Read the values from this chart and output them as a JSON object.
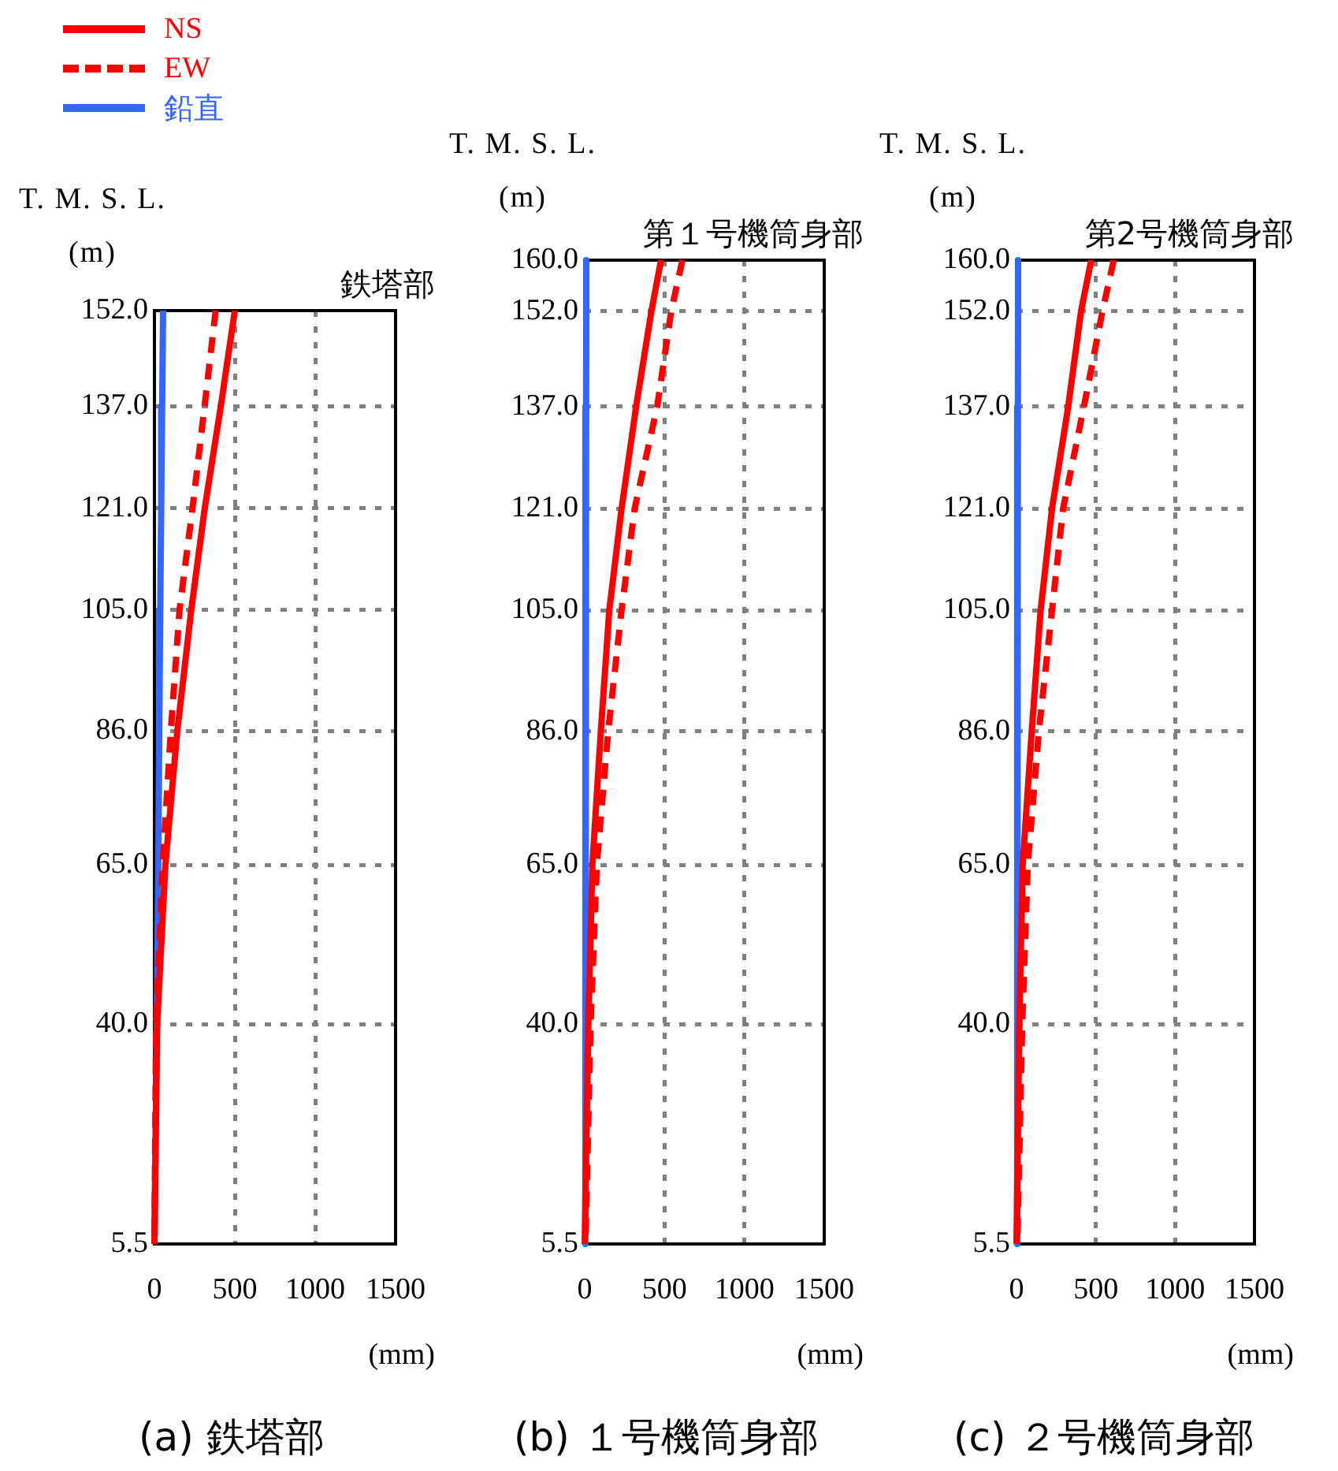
{
  "chart_data": [
    {
      "type": "line",
      "title": "鉄塔部",
      "xlabel": "(mm)",
      "ylabel": "T. M. S. L.\n(m)",
      "annotations": [
        "(a) 鉄塔部"
      ],
      "legend": "top left",
      "grid": true,
      "xlim": [
        0,
        1500
      ],
      "xticks": [
        0,
        500,
        1000,
        1500
      ],
      "ylim": [
        5.5,
        152
      ],
      "yticks": [
        {
          "value": 5.5,
          "label": "5.5"
        },
        {
          "value": 40,
          "label": "40.0"
        },
        {
          "value": 65,
          "label": "65.0"
        },
        {
          "value": 86,
          "label": "86.0"
        },
        {
          "value": 105,
          "label": "105.0"
        },
        {
          "value": 121,
          "label": "121.0"
        },
        {
          "value": 137,
          "label": "137.0"
        },
        {
          "value": 152,
          "label": "152.0"
        }
      ],
      "series": [
        {
          "name": "NS",
          "color": "#ff0000",
          "line_style": "solid",
          "x": [
            500,
            413,
            313,
            229,
            142,
            68,
            17,
            0
          ],
          "values": [
            152,
            137,
            121,
            105,
            86,
            65,
            40,
            5.5
          ]
        },
        {
          "name": "EW",
          "color": "#ff0000",
          "line_style": "dashed",
          "x": [
            381,
            312,
            237,
            156,
            102,
            51,
            10,
            0
          ],
          "values": [
            152,
            137,
            121,
            105,
            86,
            65,
            40,
            5.5
          ]
        },
        {
          "name": "鉛直",
          "color": "#3366ff",
          "line_style": "solid",
          "x": [
            54,
            48,
            42,
            36,
            30,
            24,
            15,
            0
          ],
          "values": [
            152,
            137,
            121,
            105,
            86,
            65,
            40,
            5.5
          ]
        }
      ]
    },
    {
      "type": "line",
      "title": "第１号機筒身部",
      "xlabel": "(mm)",
      "ylabel": "T. M. S. L.\n(m)",
      "annotations": [
        "(b) １号機筒身部"
      ],
      "grid": true,
      "xlim": [
        0,
        1500
      ],
      "xticks": [
        0,
        500,
        1000,
        1500
      ],
      "ylim": [
        5.5,
        160
      ],
      "yticks": [
        {
          "value": 5.5,
          "label": "5.5"
        },
        {
          "value": 40,
          "label": "40.0"
        },
        {
          "value": 65,
          "label": "65.0"
        },
        {
          "value": 86,
          "label": "86.0"
        },
        {
          "value": 105,
          "label": "105.0"
        },
        {
          "value": 121,
          "label": "121.0"
        },
        {
          "value": 137,
          "label": "137.0"
        },
        {
          "value": 152,
          "label": "152.0"
        },
        {
          "value": 160,
          "label": "160.0"
        }
      ],
      "series": [
        {
          "color": "#ff0000",
          "line_style": "solid",
          "x": [
            478,
            418,
            322,
            231,
            154,
            101,
            48,
            23,
            0
          ],
          "values": [
            160,
            152,
            137,
            121,
            105,
            86,
            65,
            40,
            5.5
          ]
        },
        {
          "color": "#ff0000",
          "line_style": "dashed",
          "x": [
            612,
            542,
            454,
            313,
            231,
            147,
            76,
            37,
            5
          ],
          "values": [
            160,
            152,
            137,
            121,
            105,
            86,
            65,
            40,
            5.5
          ]
        },
        {
          "color": "#3366ff",
          "line_style": "solid",
          "x": [
            10,
            10,
            9,
            8,
            7,
            6,
            4,
            2,
            0
          ],
          "values": [
            160,
            152,
            137,
            121,
            105,
            86,
            65,
            40,
            5.5
          ]
        }
      ]
    },
    {
      "type": "line",
      "title": "第2号機筒身部",
      "xlabel": "(mm)",
      "ylabel": "T. M. S. L.\n(m)",
      "annotations": [
        "(c) ２号機筒身部"
      ],
      "grid": true,
      "xlim": [
        0,
        1500
      ],
      "xticks": [
        0,
        500,
        1000,
        1500
      ],
      "ylim": [
        5.5,
        160
      ],
      "yticks": [
        {
          "value": 5.5,
          "label": "5.5"
        },
        {
          "value": 40,
          "label": "40.0"
        },
        {
          "value": 65,
          "label": "65.0"
        },
        {
          "value": 86,
          "label": "86.0"
        },
        {
          "value": 105,
          "label": "105.0"
        },
        {
          "value": 121,
          "label": "121.0"
        },
        {
          "value": 137,
          "label": "137.0"
        },
        {
          "value": 152,
          "label": "152.0"
        },
        {
          "value": 160,
          "label": "160.0"
        }
      ],
      "series": [
        {
          "color": "#ff0000",
          "line_style": "solid",
          "x": [
            471,
            407,
            326,
            224,
            152,
            96,
            39,
            18,
            0
          ],
          "values": [
            160,
            152,
            137,
            121,
            105,
            86,
            65,
            40,
            5.5
          ]
        },
        {
          "color": "#ff0000",
          "line_style": "dashed",
          "x": [
            613,
            542,
            425,
            294,
            224,
            141,
            71,
            36,
            5
          ],
          "values": [
            160,
            152,
            137,
            121,
            105,
            86,
            65,
            40,
            5.5
          ]
        },
        {
          "color": "#3366ff",
          "line_style": "solid",
          "x": [
            10,
            10,
            9,
            8,
            7,
            6,
            4,
            2,
            0
          ],
          "values": [
            160,
            152,
            137,
            121,
            105,
            86,
            65,
            40,
            5.5
          ]
        }
      ]
    }
  ]
}
